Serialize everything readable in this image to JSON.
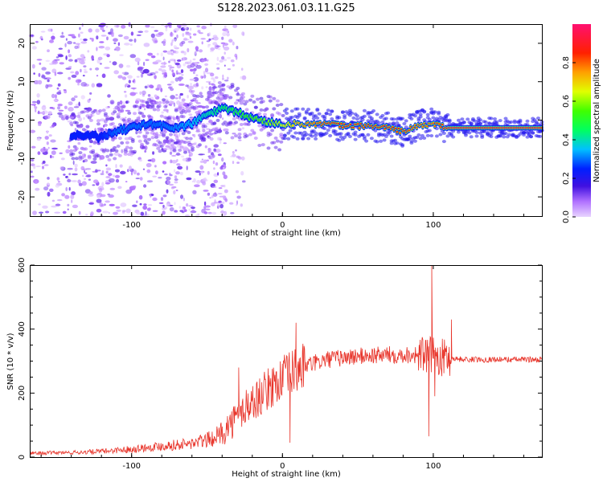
{
  "title": "S128.2023.061.03.11.G25",
  "chart_data": [
    {
      "type": "heatmap",
      "xlabel": "Height of straight line (km)",
      "ylabel": "Frequency (Hz)",
      "xlim": [
        -167,
        172
      ],
      "ylim": [
        -25,
        25
      ],
      "x_ticks": [
        -100,
        0,
        100
      ],
      "y_ticks": [
        -20,
        -10,
        0,
        10,
        20
      ],
      "grid": false,
      "colorbar": {
        "label": "Normalized spectral amplitude",
        "range": [
          0.0,
          1.0
        ],
        "ticks": [
          "0.0",
          "0.2",
          "0.4",
          "0.6",
          "0.8"
        ]
      },
      "colors": [
        "#ffffff",
        "#d8b4f8",
        "#6a2ee8",
        "#2020ff",
        "#00c8ff",
        "#00ff40",
        "#ffff00",
        "#ff8000",
        "#ff0000",
        "#ff1070"
      ],
      "ridge": [
        {
          "x": -130,
          "f": -4,
          "amp": 0.25
        },
        {
          "x": -120,
          "f": -4.5,
          "amp": 0.25
        },
        {
          "x": -110,
          "f": -3,
          "amp": 0.3
        },
        {
          "x": -100,
          "f": -2,
          "amp": 0.3
        },
        {
          "x": -90,
          "f": -1,
          "amp": 0.3
        },
        {
          "x": -80,
          "f": -1.5,
          "amp": 0.3
        },
        {
          "x": -70,
          "f": -2,
          "amp": 0.32
        },
        {
          "x": -60,
          "f": -1,
          "amp": 0.35
        },
        {
          "x": -50,
          "f": 1.5,
          "amp": 0.4
        },
        {
          "x": -40,
          "f": 3,
          "amp": 0.45
        },
        {
          "x": -30,
          "f": 2,
          "amp": 0.5
        },
        {
          "x": -20,
          "f": 0.5,
          "amp": 0.55
        },
        {
          "x": -10,
          "f": -0.5,
          "amp": 0.6
        },
        {
          "x": 0,
          "f": -1,
          "amp": 0.65
        },
        {
          "x": 10,
          "f": -1,
          "amp": 0.75
        },
        {
          "x": 20,
          "f": -1,
          "amp": 0.8
        },
        {
          "x": 30,
          "f": -1,
          "amp": 0.85
        },
        {
          "x": 40,
          "f": -1.5,
          "amp": 0.85
        },
        {
          "x": 50,
          "f": -1.5,
          "amp": 0.85
        },
        {
          "x": 60,
          "f": -1.5,
          "amp": 0.85
        },
        {
          "x": 70,
          "f": -2,
          "amp": 0.85
        },
        {
          "x": 80,
          "f": -3,
          "amp": 0.85
        },
        {
          "x": 90,
          "f": -1.5,
          "amp": 0.8
        },
        {
          "x": 100,
          "f": -1,
          "amp": 0.8
        },
        {
          "x": 110,
          "f": -2,
          "amp": 0.9
        },
        {
          "x": 130,
          "f": -2,
          "amp": 0.9
        },
        {
          "x": 150,
          "f": -2,
          "amp": 0.9
        },
        {
          "x": 172,
          "f": -2,
          "amp": 0.9
        }
      ]
    },
    {
      "type": "line",
      "xlabel": "Height of straight line (km)",
      "ylabel": "SNR (10 * v/v)",
      "xlim": [
        -167,
        172
      ],
      "ylim": [
        0,
        600
      ],
      "x_ticks": [
        -100,
        0,
        100
      ],
      "y_ticks": [
        0,
        200,
        400,
        600
      ],
      "grid": false,
      "color": "#e8342a",
      "envelope": {
        "x": [
          -167,
          -140,
          -120,
          -100,
          -80,
          -60,
          -45,
          -35,
          -25,
          -15,
          -5,
          5,
          15,
          30,
          50,
          70,
          90,
          100,
          110,
          120,
          140,
          172
        ],
        "y": [
          12,
          14,
          18,
          25,
          35,
          42,
          60,
          100,
          150,
          190,
          230,
          260,
          285,
          305,
          315,
          320,
          320,
          315,
          310,
          305,
          305,
          305
        ]
      },
      "spikes": [
        {
          "x": -29,
          "y": 280
        },
        {
          "x": -24,
          "y": 210
        },
        {
          "x": 5,
          "y": 45
        },
        {
          "x": 9,
          "y": 420
        },
        {
          "x": 97,
          "y": 65
        },
        {
          "x": 99,
          "y": 600
        },
        {
          "x": 101,
          "y": 190
        },
        {
          "x": 112,
          "y": 430
        }
      ]
    }
  ]
}
